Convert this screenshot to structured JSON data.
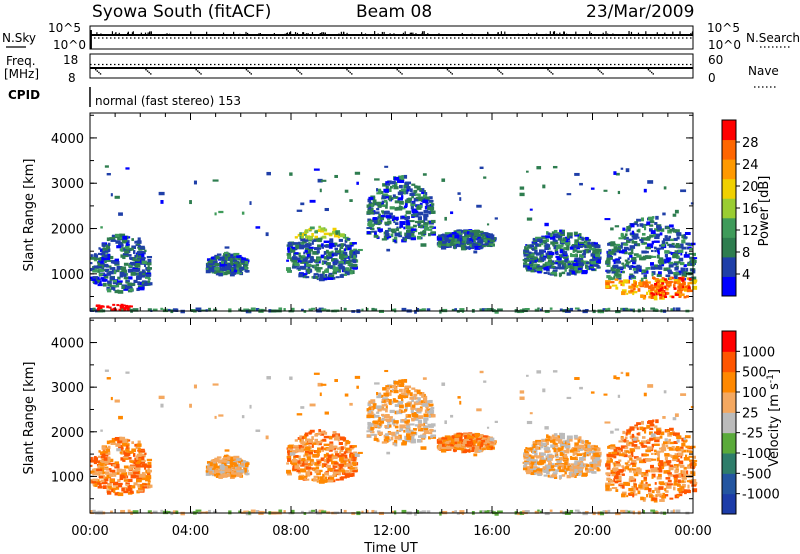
{
  "header": {
    "station": "Syowa South (fitACF)",
    "beam": "Beam 08",
    "date": "23/Mar/2009"
  },
  "top_panels": {
    "nsky_label": "N.Sky",
    "nsearch_label": "N.Search",
    "nsky_ticks": [
      "10^5",
      "10^0"
    ],
    "nsearch_ticks": [
      "10^5",
      "10^0"
    ],
    "freq_label_1": "Freq.",
    "freq_label_2": "[MHz]",
    "freq_ticks": [
      "18",
      "8"
    ],
    "nave_ticks": [
      "60",
      "0"
    ],
    "nave_label": "Nave",
    "cpid_label": "CPID",
    "cpid_text": "normal (fast stereo) 153"
  },
  "colors": {
    "power_scale": [
      "#0000ff",
      "#1f3fa8",
      "#2e7d4f",
      "#3f9b5a",
      "#9acd32",
      "#f0d000",
      "#ff9900",
      "#ff6600",
      "#ff0000"
    ],
    "velocity_scale": [
      "#1c3ca8",
      "#2355a0",
      "#2e7d6a",
      "#5aaa3a",
      "#bbbbbb",
      "#f4a860",
      "#ff8800",
      "#ff5500",
      "#ff0000"
    ],
    "ground_scatter": "#999999"
  },
  "chart_data": [
    {
      "type": "heatmap",
      "title": "Power",
      "xlabel": "",
      "ylabel": "Slant Range [km]",
      "xlim": [
        0,
        24
      ],
      "ylim": [
        180,
        4550
      ],
      "y_ticks": [
        "4000",
        "3000",
        "2000",
        "1000"
      ],
      "colorbar_label": "Power [dB]",
      "colorbar_ticks": [
        "28",
        "24",
        "20",
        "16",
        "12",
        "8",
        "4"
      ],
      "echo_regions": [
        {
          "t_start": 0.0,
          "t_end": 2.3,
          "r_min": 600,
          "r_max": 1900
        },
        {
          "t_start": 4.6,
          "t_end": 6.2,
          "r_min": 1000,
          "r_max": 1500
        },
        {
          "t_start": 7.8,
          "t_end": 10.5,
          "r_min": 900,
          "r_max": 2100
        },
        {
          "t_start": 11.0,
          "t_end": 13.6,
          "r_min": 1700,
          "r_max": 3200
        },
        {
          "t_start": 13.8,
          "t_end": 16.0,
          "r_min": 1600,
          "r_max": 2000
        },
        {
          "t_start": 17.2,
          "t_end": 20.2,
          "r_min": 1000,
          "r_max": 2000
        },
        {
          "t_start": 20.5,
          "t_end": 24.0,
          "r_min": 450,
          "r_max": 2300
        }
      ]
    },
    {
      "type": "heatmap",
      "title": "Velocity",
      "xlabel": "Time UT",
      "ylabel": "Slant Range [km]",
      "xlim": [
        0,
        24
      ],
      "ylim": [
        180,
        4550
      ],
      "x_ticks": [
        "00:00",
        "04:00",
        "08:00",
        "12:00",
        "16:00",
        "20:00",
        "00:00"
      ],
      "y_ticks": [
        "4000",
        "3000",
        "2000",
        "1000"
      ],
      "colorbar_label": "Velocity [m s",
      "colorbar_label_sup": "-1",
      "colorbar_label_end": "]",
      "colorbar_ticks": [
        "1000",
        "500",
        "100",
        "25",
        "-25",
        "-100",
        "-500",
        "-1000"
      ]
    }
  ]
}
